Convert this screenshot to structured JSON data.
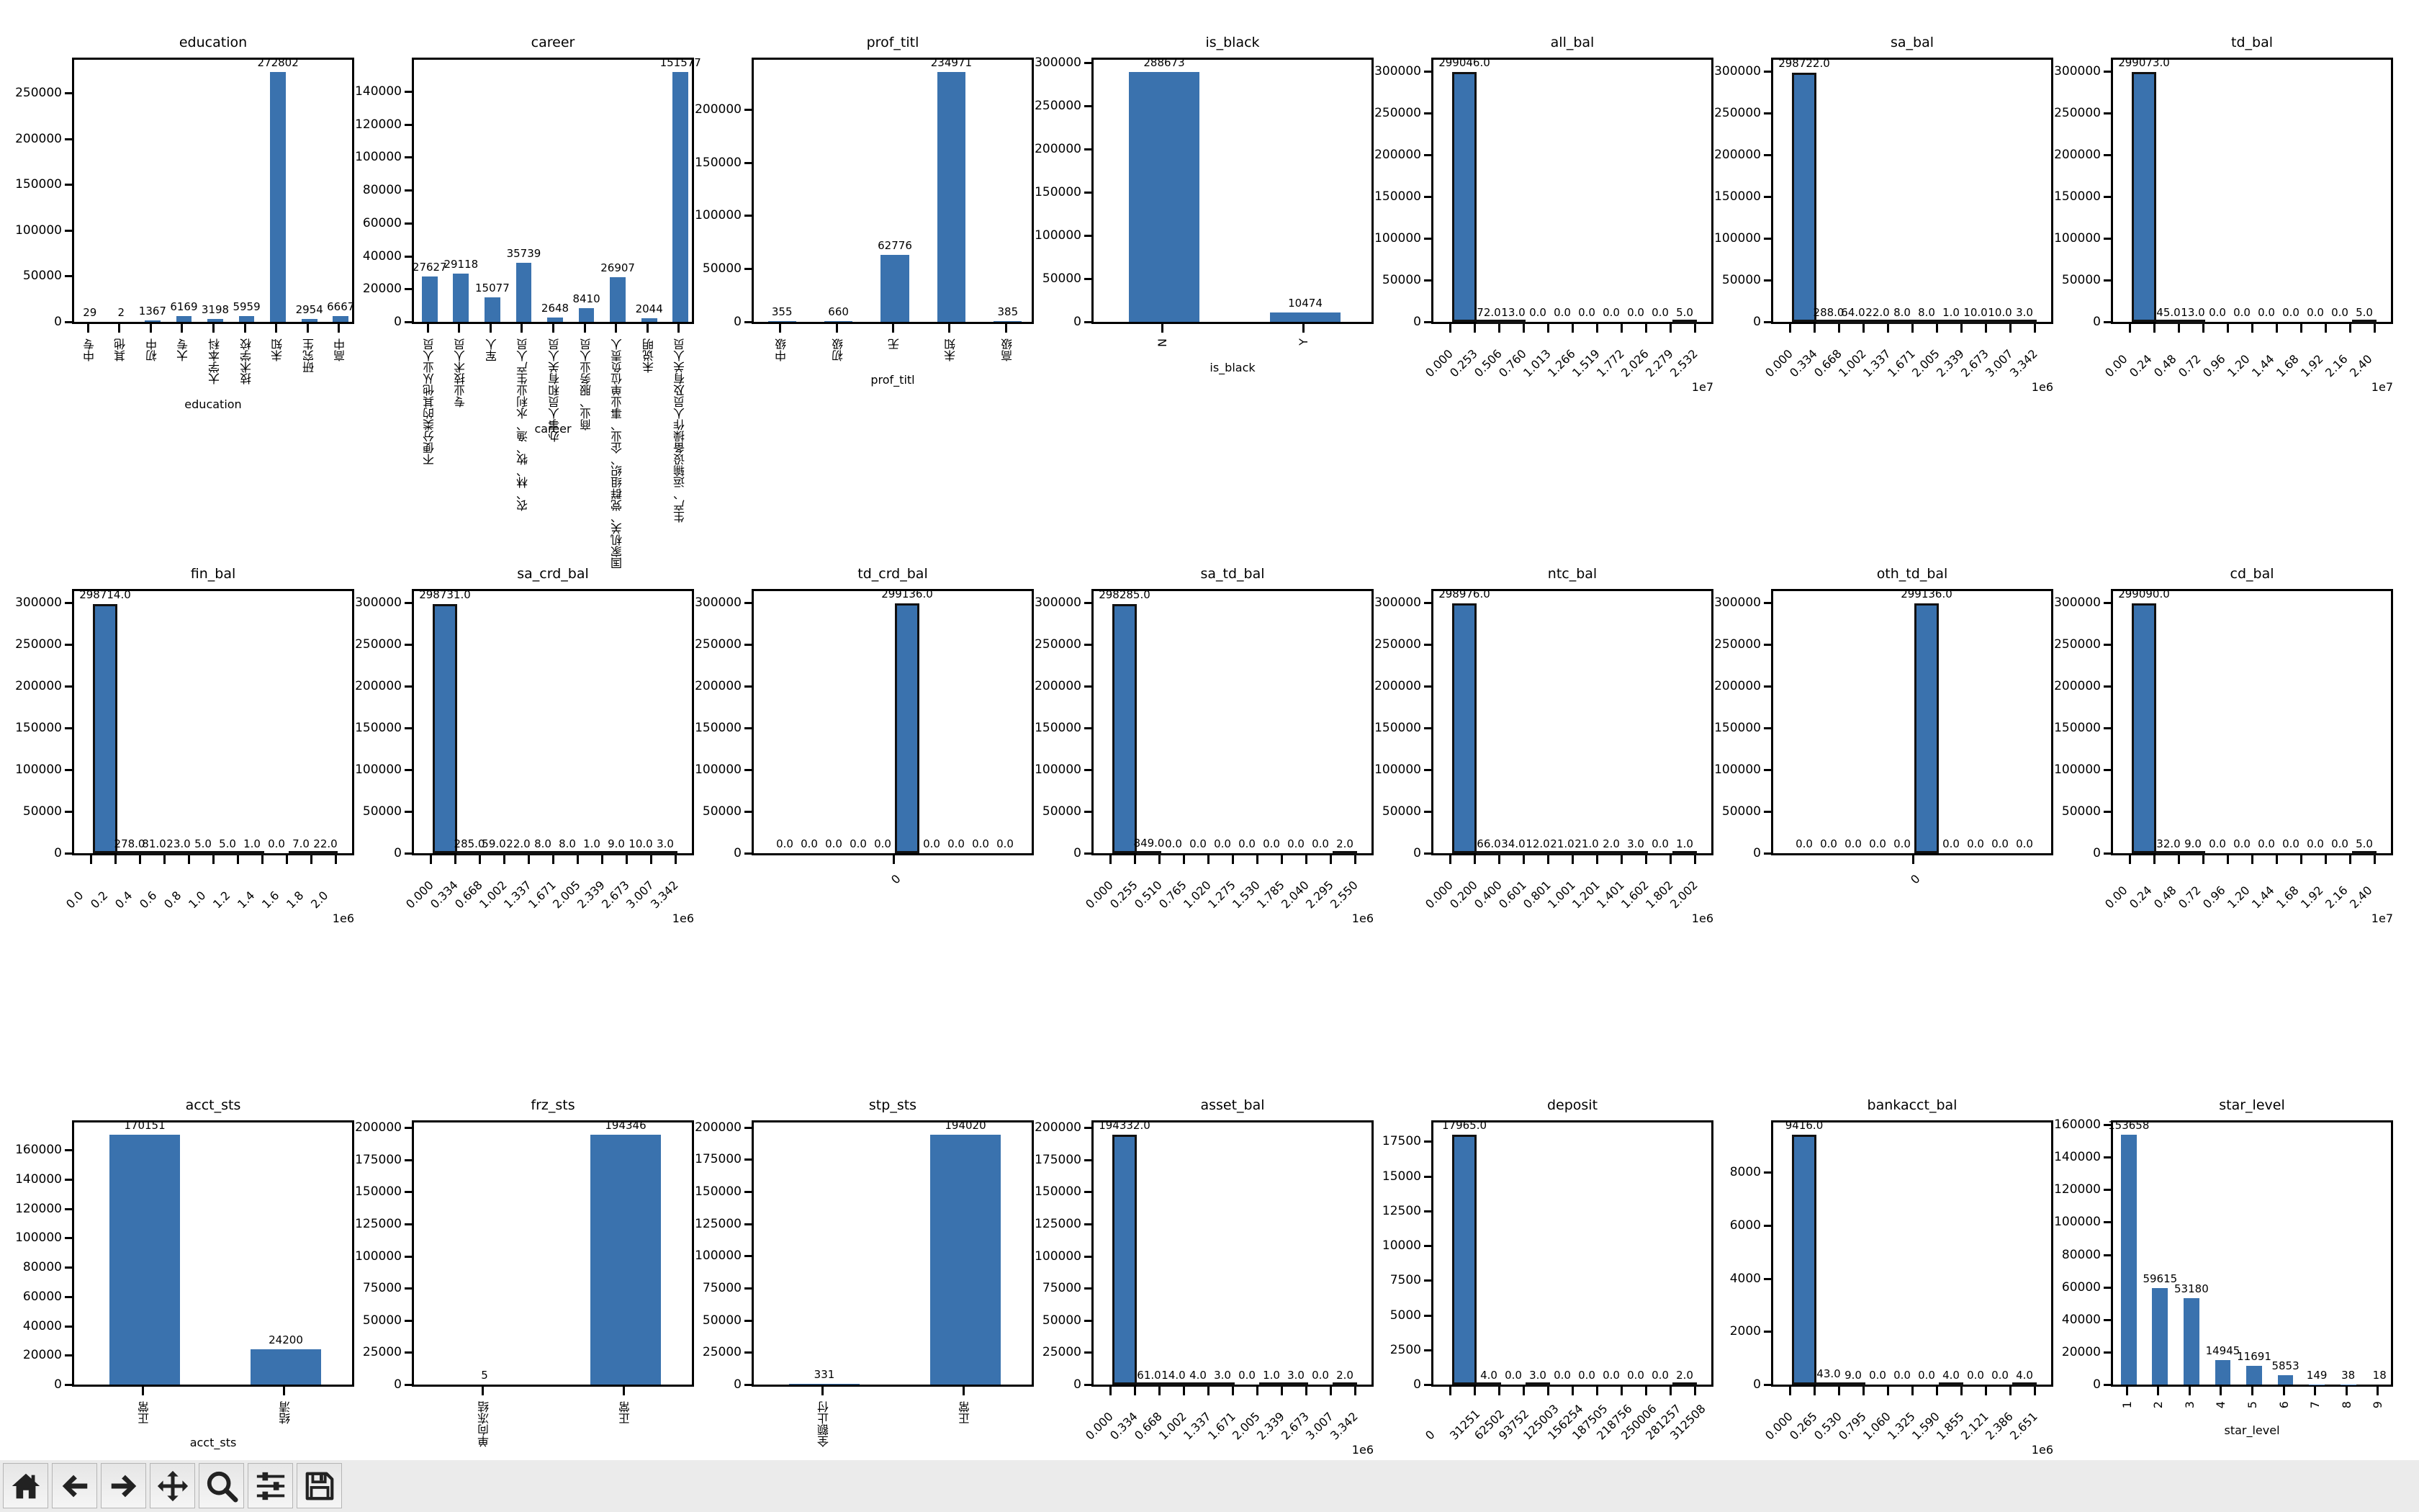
{
  "window": {
    "toolbar": {
      "buttons": [
        {
          "name": "home",
          "icon": "home-icon"
        },
        {
          "name": "back",
          "icon": "arrow-left-icon"
        },
        {
          "name": "forward",
          "icon": "arrow-right-icon"
        },
        {
          "name": "pan",
          "icon": "move-icon"
        },
        {
          "name": "zoom",
          "icon": "magnifier-icon"
        },
        {
          "name": "configure-subplots",
          "icon": "sliders-icon"
        },
        {
          "name": "save",
          "icon": "floppy-disk-icon"
        }
      ]
    }
  },
  "colors": {
    "bar": "#3a72ae",
    "edge": "#111111",
    "toolbar_bg": "#ebebeb"
  },
  "chart_data": [
    {
      "id": "education",
      "type": "bar",
      "title": "education",
      "xlabel": "education",
      "ylabel": "",
      "categories": [
        "中专",
        "其他",
        "初中",
        "大专",
        "大学本科",
        "技术学校",
        "未知",
        "研究生",
        "高中"
      ],
      "values": [
        29,
        2,
        1367,
        6169,
        3198,
        5959,
        272802,
        2954,
        6667
      ],
      "value_labels": [
        "29",
        "2",
        "1367",
        "6169",
        "3198",
        "5959",
        "272802",
        "2954",
        "6667"
      ],
      "yticks": [
        0,
        50000,
        100000,
        150000,
        200000,
        250000
      ],
      "ylim": [
        0,
        286442
      ]
    },
    {
      "id": "career",
      "type": "bar",
      "title": "career",
      "xlabel": "career",
      "ylabel": "",
      "categories": [
        "不便分类的其他从业人员",
        "专业技术人员",
        "军人",
        "农、林、牧、渔、水利业生产人员",
        "办事人员和有关人员",
        "商业、服务业人员",
        "国家机关、党群组织、企业、事业单位负责人",
        "未说明",
        "生产、运输设备操作人员及有关人员"
      ],
      "values": [
        27627,
        29118,
        15077,
        35739,
        2648,
        8410,
        26907,
        2044,
        151577
      ],
      "value_labels": [
        "27627",
        "29118",
        "15077",
        "35739",
        "2648",
        "8410",
        "26907",
        "2044",
        "151577"
      ],
      "yticks": [
        0,
        20000,
        40000,
        60000,
        80000,
        100000,
        120000,
        140000
      ],
      "ylim": [
        0,
        159156
      ]
    },
    {
      "id": "prof_titl",
      "type": "bar",
      "title": "prof_titl",
      "xlabel": "prof_titl",
      "ylabel": "",
      "categories": [
        "中级",
        "初级",
        "无",
        "未知",
        "高级"
      ],
      "values": [
        355,
        660,
        62776,
        234971,
        385
      ],
      "value_labels": [
        "355",
        "660",
        "62776",
        "234971",
        "385"
      ],
      "yticks": [
        0,
        50000,
        100000,
        150000,
        200000
      ],
      "ylim": [
        0,
        246720
      ]
    },
    {
      "id": "is_black",
      "type": "bar",
      "title": "is_black",
      "xlabel": "is_black",
      "ylabel": "",
      "categories": [
        "N",
        "Y"
      ],
      "values": [
        288673,
        10474
      ],
      "value_labels": [
        "288673",
        "10474"
      ],
      "yticks": [
        0,
        50000,
        100000,
        150000,
        200000,
        250000,
        300000
      ],
      "ylim": [
        0,
        303107
      ]
    },
    {
      "id": "all_bal",
      "type": "bar",
      "hist": true,
      "title": "all_bal",
      "xlabel": "",
      "offset": "1e7",
      "bin_edges": [
        "0.000",
        "0.253",
        "0.506",
        "0.760",
        "1.013",
        "1.266",
        "1.519",
        "1.772",
        "2.026",
        "2.279",
        "2.532"
      ],
      "values": [
        299046,
        72,
        13,
        0,
        0,
        0,
        0,
        0,
        0,
        5
      ],
      "value_labels": [
        "299046.0",
        "72.0",
        "13.0",
        "0.0",
        "0.0",
        "0.0",
        "0.0",
        "0.0",
        "0.0",
        "5.0"
      ],
      "yticks": [
        0,
        50000,
        100000,
        150000,
        200000,
        250000,
        300000
      ],
      "ylim": [
        0,
        314000
      ]
    },
    {
      "id": "sa_bal",
      "type": "bar",
      "hist": true,
      "title": "sa_bal",
      "xlabel": "",
      "offset": "1e6",
      "bin_edges": [
        "0.000",
        "0.334",
        "0.668",
        "1.002",
        "1.337",
        "1.671",
        "2.005",
        "2.339",
        "2.673",
        "3.007",
        "3.342"
      ],
      "values": [
        298722,
        288,
        64,
        22,
        8,
        8,
        1,
        10,
        10,
        3
      ],
      "value_labels": [
        "298722.0",
        "288.0",
        "64.0",
        "22.0",
        "8.0",
        "8.0",
        "1.0",
        "10.0",
        "10.0",
        "3.0"
      ],
      "yticks": [
        0,
        50000,
        100000,
        150000,
        200000,
        250000,
        300000
      ],
      "ylim": [
        0,
        314000
      ]
    },
    {
      "id": "td_bal",
      "type": "bar",
      "hist": true,
      "title": "td_bal",
      "xlabel": "",
      "offset": "1e7",
      "bin_edges": [
        "0.00",
        "0.24",
        "0.48",
        "0.72",
        "0.96",
        "1.20",
        "1.44",
        "1.68",
        "1.92",
        "2.16",
        "2.40"
      ],
      "values": [
        299073,
        45,
        13,
        0,
        0,
        0,
        0,
        0,
        0,
        5
      ],
      "value_labels": [
        "299073.0",
        "45.0",
        "13.0",
        "0.0",
        "0.0",
        "0.0",
        "0.0",
        "0.0",
        "0.0",
        "5.0"
      ],
      "yticks": [
        0,
        50000,
        100000,
        150000,
        200000,
        250000,
        300000
      ],
      "ylim": [
        0,
        314000
      ]
    },
    {
      "id": "fin_bal",
      "type": "bar",
      "hist": true,
      "title": "fin_bal",
      "xlabel": "",
      "offset": "1e6",
      "bin_edges": [
        "0.0",
        "0.2",
        "0.4",
        "0.6",
        "0.8",
        "1.0",
        "1.2",
        "1.4",
        "1.6",
        "1.8",
        "2.0"
      ],
      "values": [
        298714,
        278,
        81,
        23,
        5,
        5,
        1,
        0,
        7,
        22
      ],
      "value_labels": [
        "298714.0",
        "278.0",
        "81.0",
        "23.0",
        "5.0",
        "5.0",
        "1.0",
        "0.0",
        "7.0",
        "22.0"
      ],
      "yticks": [
        0,
        50000,
        100000,
        150000,
        200000,
        250000,
        300000
      ],
      "ylim": [
        0,
        314000
      ]
    },
    {
      "id": "sa_crd_bal",
      "type": "bar",
      "hist": true,
      "title": "sa_crd_bal",
      "xlabel": "",
      "offset": "1e6",
      "bin_edges": [
        "0.000",
        "0.334",
        "0.668",
        "1.002",
        "1.337",
        "1.671",
        "2.005",
        "2.339",
        "2.673",
        "3.007",
        "3.342"
      ],
      "values": [
        298731,
        285,
        59,
        22,
        8,
        8,
        1,
        9,
        10,
        3
      ],
      "value_labels": [
        "298731.0",
        "285.0",
        "59.0",
        "22.0",
        "8.0",
        "8.0",
        "1.0",
        "9.0",
        "10.0",
        "3.0"
      ],
      "yticks": [
        0,
        50000,
        100000,
        150000,
        200000,
        250000,
        300000
      ],
      "ylim": [
        0,
        314000
      ]
    },
    {
      "id": "td_crd_bal",
      "type": "bar",
      "hist": true,
      "title": "td_crd_bal",
      "xlabel": "",
      "offset": "",
      "bin_edges": [
        "0"
      ],
      "single_tick": true,
      "values": [
        0,
        0,
        0,
        0,
        0,
        299136,
        0,
        0,
        0,
        0
      ],
      "value_labels": [
        "0.0",
        "0.0",
        "0.0",
        "0.0",
        "0.0",
        "299136.0",
        "0.0",
        "0.0",
        "0.0",
        "0.0"
      ],
      "yticks": [
        0,
        50000,
        100000,
        150000,
        200000,
        250000,
        300000
      ],
      "ylim": [
        0,
        314000
      ]
    },
    {
      "id": "sa_td_bal",
      "type": "bar",
      "hist": true,
      "title": "sa_td_bal",
      "xlabel": "",
      "offset": "1e6",
      "bin_edges": [
        "0.000",
        "0.255",
        "0.510",
        "0.765",
        "1.020",
        "1.275",
        "1.530",
        "1.785",
        "2.040",
        "2.295",
        "2.550"
      ],
      "values": [
        298285,
        849,
        0,
        0,
        0,
        0,
        0,
        0,
        0,
        2
      ],
      "value_labels": [
        "298285.0",
        "849.0",
        "0.0",
        "0.0",
        "0.0",
        "0.0",
        "0.0",
        "0.0",
        "0.0",
        "2.0"
      ],
      "yticks": [
        0,
        50000,
        100000,
        150000,
        200000,
        250000,
        300000
      ],
      "ylim": [
        0,
        314000
      ]
    },
    {
      "id": "ntc_bal",
      "type": "bar",
      "hist": true,
      "title": "ntc_bal",
      "xlabel": "",
      "offset": "1e6",
      "bin_edges": [
        "0.000",
        "0.200",
        "0.400",
        "0.601",
        "0.801",
        "1.001",
        "1.201",
        "1.401",
        "1.602",
        "1.802",
        "2.002"
      ],
      "values": [
        298976,
        66,
        34,
        12,
        21,
        21,
        2,
        3,
        0,
        1
      ],
      "value_labels": [
        "298976.0",
        "66.0",
        "34.0",
        "12.0",
        "21.0",
        "21.0",
        "2.0",
        "3.0",
        "0.0",
        "1.0"
      ],
      "yticks": [
        0,
        50000,
        100000,
        150000,
        200000,
        250000,
        300000
      ],
      "ylim": [
        0,
        314000
      ]
    },
    {
      "id": "oth_td_bal",
      "type": "bar",
      "hist": true,
      "title": "oth_td_bal",
      "xlabel": "",
      "offset": "",
      "bin_edges": [
        "0"
      ],
      "single_tick": true,
      "values": [
        0,
        0,
        0,
        0,
        0,
        299136,
        0,
        0,
        0,
        0
      ],
      "value_labels": [
        "0.0",
        "0.0",
        "0.0",
        "0.0",
        "0.0",
        "299136.0",
        "0.0",
        "0.0",
        "0.0",
        "0.0"
      ],
      "yticks": [
        0,
        50000,
        100000,
        150000,
        200000,
        250000,
        300000
      ],
      "ylim": [
        0,
        314000
      ]
    },
    {
      "id": "cd_bal",
      "type": "bar",
      "hist": true,
      "title": "cd_bal",
      "xlabel": "",
      "offset": "1e7",
      "bin_edges": [
        "0.00",
        "0.24",
        "0.48",
        "0.72",
        "0.96",
        "1.20",
        "1.44",
        "1.68",
        "1.92",
        "2.16",
        "2.40"
      ],
      "values": [
        299090,
        32,
        9,
        0,
        0,
        0,
        0,
        0,
        0,
        5
      ],
      "value_labels": [
        "299090.0",
        "32.0",
        "9.0",
        "0.0",
        "0.0",
        "0.0",
        "0.0",
        "0.0",
        "0.0",
        "5.0"
      ],
      "yticks": [
        0,
        50000,
        100000,
        150000,
        200000,
        250000,
        300000
      ],
      "ylim": [
        0,
        314000
      ]
    },
    {
      "id": "acct_sts",
      "type": "bar",
      "title": "acct_sts",
      "xlabel": "acct_sts",
      "ylabel": "",
      "categories": [
        "正常",
        "结清"
      ],
      "values": [
        170151,
        24200
      ],
      "value_labels": [
        "170151",
        "24200"
      ],
      "yticks": [
        0,
        20000,
        40000,
        60000,
        80000,
        100000,
        120000,
        140000,
        160000
      ],
      "ylim": [
        0,
        178658
      ]
    },
    {
      "id": "frz_sts",
      "type": "bar",
      "title": "frz_sts",
      "xlabel": "frz_sts",
      "ylabel": "",
      "categories": [
        "单向冻结",
        "正常"
      ],
      "values": [
        5,
        194346
      ],
      "value_labels": [
        "5",
        "194346"
      ],
      "yticks": [
        0,
        25000,
        50000,
        75000,
        100000,
        125000,
        150000,
        175000,
        200000
      ],
      "ylim": [
        0,
        204063
      ]
    },
    {
      "id": "stp_sts",
      "type": "bar",
      "title": "stp_sts",
      "xlabel": "stp_sts",
      "ylabel": "",
      "categories": [
        "全额止付",
        "正常"
      ],
      "values": [
        331,
        194020
      ],
      "value_labels": [
        "331",
        "194020"
      ],
      "yticks": [
        0,
        25000,
        50000,
        75000,
        100000,
        125000,
        150000,
        175000,
        200000
      ],
      "ylim": [
        0,
        203721
      ]
    },
    {
      "id": "asset_bal",
      "type": "bar",
      "hist": true,
      "title": "asset_bal",
      "xlabel": "",
      "offset": "1e6",
      "bin_edges": [
        "0.000",
        "0.334",
        "0.668",
        "1.002",
        "1.337",
        "1.671",
        "2.005",
        "2.339",
        "2.673",
        "3.007",
        "3.342"
      ],
      "values": [
        194332,
        61,
        14,
        4,
        3,
        0,
        1,
        3,
        0,
        2
      ],
      "value_labels": [
        "194332.0",
        "61.0",
        "14.0",
        "4.0",
        "3.0",
        "0.0",
        "1.0",
        "3.0",
        "0.0",
        "2.0"
      ],
      "yticks": [
        0,
        25000,
        50000,
        75000,
        100000,
        125000,
        150000,
        175000,
        200000
      ],
      "ylim": [
        0,
        204049
      ]
    },
    {
      "id": "deposit",
      "type": "bar",
      "hist": true,
      "title": "deposit",
      "xlabel": "",
      "offset": "",
      "bin_edges": [
        "0",
        "31251",
        "62502",
        "93752",
        "125003",
        "156254",
        "187505",
        "218756",
        "250006",
        "281257",
        "312508"
      ],
      "values": [
        17965,
        4,
        0,
        3,
        0,
        0,
        0,
        0,
        0,
        2
      ],
      "value_labels": [
        "17965.0",
        "4.0",
        "0.0",
        "3.0",
        "0.0",
        "0.0",
        "0.0",
        "0.0",
        "0.0",
        "2.0"
      ],
      "yticks": [
        0,
        2500,
        5000,
        7500,
        10000,
        12500,
        15000,
        17500
      ],
      "ylim": [
        0,
        18863
      ]
    },
    {
      "id": "bankacct_bal",
      "type": "bar",
      "hist": true,
      "title": "bankacct_bal",
      "xlabel": "",
      "offset": "1e6",
      "bin_edges": [
        "0.000",
        "0.265",
        "0.530",
        "0.795",
        "1.060",
        "1.325",
        "1.590",
        "1.855",
        "2.121",
        "2.386",
        "2.651"
      ],
      "values": [
        9416,
        43,
        9,
        0,
        0,
        0,
        4,
        0,
        0,
        4
      ],
      "value_labels": [
        "9416.0",
        "43.0",
        "9.0",
        "0.0",
        "0.0",
        "0.0",
        "4.0",
        "0.0",
        "0.0",
        "4.0"
      ],
      "yticks": [
        0,
        2000,
        4000,
        6000,
        8000
      ],
      "ylim": [
        0,
        9887
      ]
    },
    {
      "id": "star_level",
      "type": "bar",
      "title": "star_level",
      "xlabel": "star_level",
      "ylabel": "",
      "categories": [
        "1",
        "2",
        "3",
        "4",
        "5",
        "6",
        "7",
        "8",
        "9"
      ],
      "values": [
        153658,
        59615,
        53180,
        14945,
        11691,
        5853,
        149,
        38,
        18
      ],
      "value_labels": [
        "153658",
        "59615",
        "53180",
        "14945",
        "11691",
        "5853",
        "149",
        "38",
        "18"
      ],
      "yticks": [
        0,
        20000,
        40000,
        60000,
        80000,
        100000,
        120000,
        140000,
        160000
      ],
      "ylim": [
        0,
        161341
      ]
    }
  ]
}
